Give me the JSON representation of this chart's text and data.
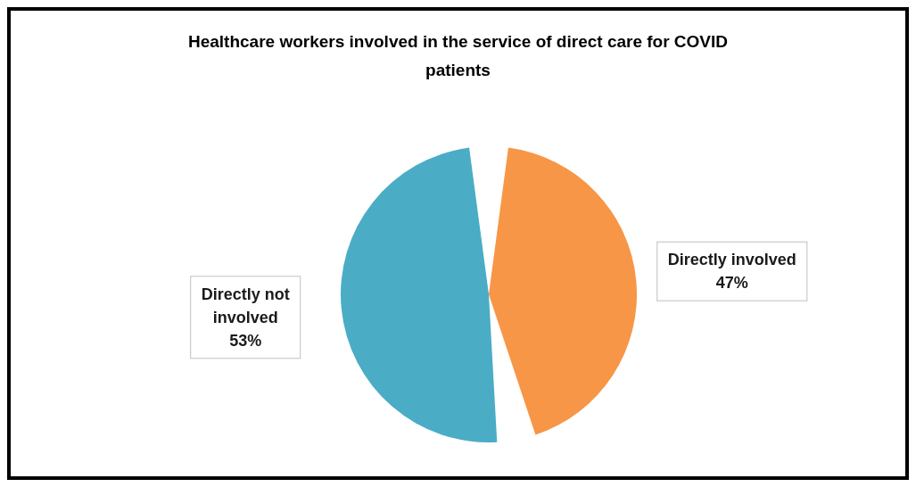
{
  "chart_data": {
    "type": "pie",
    "title": "Healthcare workers involved in the service of direct care for COVID patients",
    "categories": [
      "Directly involved",
      "Directly not involved"
    ],
    "values": [
      47,
      53
    ],
    "colors": [
      "#f79646",
      "#4bacc6"
    ],
    "value_labels": [
      "47%",
      "53%"
    ]
  }
}
